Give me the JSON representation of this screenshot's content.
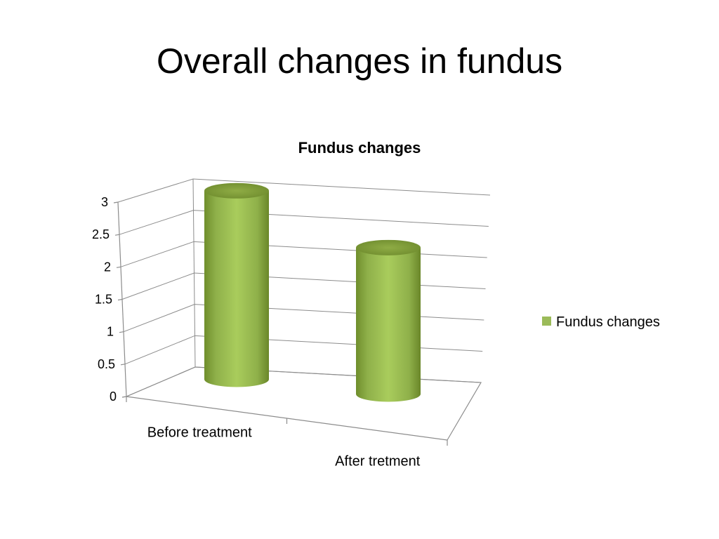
{
  "slide": {
    "title": "Overall changes in fundus"
  },
  "chart_data": {
    "type": "bar",
    "style": "3d-cylinder",
    "title": "Fundus changes",
    "categories": [
      "Before treatment",
      "After tretment"
    ],
    "series": [
      {
        "name": "Fundus changes",
        "values": [
          2.91,
          2.26
        ],
        "color": "#9bbb59"
      }
    ],
    "ylim": [
      0,
      3
    ],
    "yticks": [
      "0",
      "0.5",
      "1",
      "1.5",
      "2",
      "2.5",
      "3"
    ],
    "grid": true,
    "legend_position": "right"
  }
}
